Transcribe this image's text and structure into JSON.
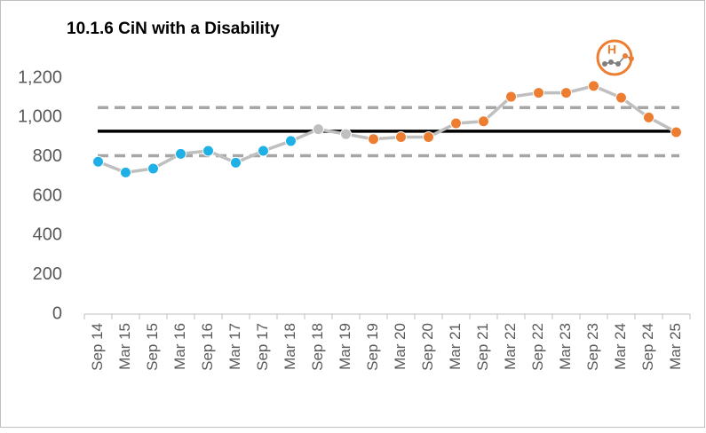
{
  "chart_data": {
    "type": "spc_line",
    "title": "10.1.6 CiN with a Disability",
    "icon_label": "H",
    "categories": [
      "Sep 14",
      "Mar 15",
      "Sep 15",
      "Mar 16",
      "Sep 16",
      "Mar 17",
      "Sep 17",
      "Mar 18",
      "Sep 18",
      "Mar 19",
      "Sep 19",
      "Mar 20",
      "Sep 20",
      "Mar 21",
      "Sep 21",
      "Mar 22",
      "Sep 22",
      "Mar 23",
      "Sep 23",
      "Mar 24",
      "Sep 24",
      "Mar 25"
    ],
    "values": [
      775,
      720,
      740,
      815,
      830,
      770,
      830,
      880,
      940,
      915,
      890,
      900,
      900,
      970,
      980,
      1105,
      1125,
      1125,
      1160,
      1100,
      1000,
      925
    ],
    "point_colors": [
      "#1fb1e6",
      "#1fb1e6",
      "#1fb1e6",
      "#1fb1e6",
      "#1fb1e6",
      "#1fb1e6",
      "#1fb1e6",
      "#1fb1e6",
      "#bfbfbf",
      "#bfbfbf",
      "#ed7d31",
      "#ed7d31",
      "#ed7d31",
      "#ed7d31",
      "#ed7d31",
      "#ed7d31",
      "#ed7d31",
      "#ed7d31",
      "#ed7d31",
      "#ed7d31",
      "#ed7d31",
      "#ed7d31"
    ],
    "line_color": "#bfbfbf",
    "mean": 930,
    "mean_color": "#000000",
    "upper_limit": 1050,
    "lower_limit": 805,
    "limit_color": "#a6a6a6",
    "ylim": [
      0,
      1200
    ],
    "yticks": [
      0,
      200,
      400,
      600,
      800,
      {
        "value": 1000,
        "label": "1,000"
      },
      {
        "value": 1200,
        "label": "1,200"
      }
    ],
    "grid": false
  }
}
